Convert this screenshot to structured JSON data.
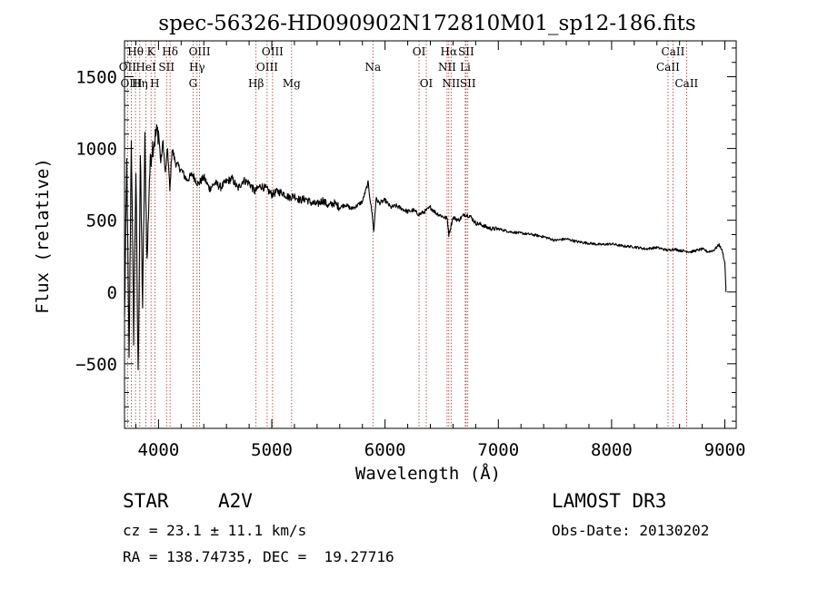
{
  "chart_data": {
    "type": "line",
    "title": "spec-56326-HD090902N172810M01_sp12-186.fits",
    "xlabel": "Wavelength (Å)",
    "ylabel": "Flux (relative)",
    "xlim": [
      3700,
      9100
    ],
    "ylim": [
      -950,
      1750
    ],
    "xticks": [
      4000,
      5000,
      6000,
      7000,
      8000,
      9000
    ],
    "yticks": [
      -500,
      0,
      500,
      1000,
      1500
    ],
    "grid": false,
    "series": [
      {
        "name": "flux",
        "x": [
          3700,
          3720,
          3740,
          3760,
          3780,
          3800,
          3820,
          3840,
          3860,
          3880,
          3900,
          3920,
          3940,
          3960,
          3980,
          4000,
          4020,
          4040,
          4060,
          4080,
          4100,
          4120,
          4150,
          4200,
          4250,
          4300,
          4350,
          4400,
          4450,
          4500,
          4550,
          4600,
          4650,
          4700,
          4750,
          4800,
          4850,
          4900,
          4950,
          5000,
          5050,
          5100,
          5150,
          5200,
          5250,
          5300,
          5350,
          5400,
          5450,
          5500,
          5550,
          5600,
          5650,
          5700,
          5750,
          5800,
          5850,
          5890,
          5900,
          5920,
          5950,
          6000,
          6050,
          6100,
          6150,
          6200,
          6250,
          6300,
          6350,
          6400,
          6450,
          6500,
          6550,
          6563,
          6600,
          6650,
          6700,
          6750,
          6800,
          6850,
          6900,
          6950,
          7000,
          7100,
          7200,
          7300,
          7400,
          7500,
          7600,
          7700,
          7800,
          7900,
          8000,
          8100,
          8200,
          8300,
          8400,
          8500,
          8550,
          8600,
          8650,
          8700,
          8750,
          8800,
          8850,
          8900,
          8950,
          8980,
          9000,
          9010
        ],
        "values": [
          -200,
          900,
          -500,
          1100,
          -300,
          850,
          -600,
          950,
          -100,
          1050,
          200,
          800,
          1000,
          1050,
          1100,
          1120,
          900,
          1050,
          820,
          1000,
          700,
          1000,
          900,
          850,
          780,
          820,
          750,
          800,
          720,
          760,
          730,
          770,
          790,
          720,
          780,
          760,
          700,
          740,
          720,
          680,
          700,
          690,
          660,
          670,
          640,
          650,
          620,
          610,
          640,
          600,
          620,
          590,
          610,
          580,
          600,
          630,
          760,
          520,
          420,
          650,
          620,
          640,
          590,
          600,
          580,
          560,
          570,
          540,
          560,
          590,
          550,
          530,
          510,
          400,
          520,
          500,
          540,
          530,
          480,
          470,
          450,
          440,
          440,
          420,
          410,
          400,
          385,
          360,
          370,
          350,
          340,
          330,
          335,
          320,
          315,
          300,
          310,
          290,
          300,
          290,
          285,
          280,
          290,
          300,
          280,
          290,
          330,
          280,
          200,
          0
        ]
      }
    ],
    "annotations": [
      {
        "label": "Hθ",
        "x": 3797,
        "row": 1
      },
      {
        "label": "K",
        "x": 3934,
        "row": 1
      },
      {
        "label": "Hδ",
        "x": 4102,
        "row": 1
      },
      {
        "label": "OIII",
        "x": 4363,
        "row": 1
      },
      {
        "label": "OIII",
        "x": 5007,
        "row": 1
      },
      {
        "label": "OI",
        "x": 6300,
        "row": 1
      },
      {
        "label": "Hα",
        "x": 6563,
        "row": 1
      },
      {
        "label": "SII",
        "x": 6716,
        "row": 1
      },
      {
        "label": "CaII",
        "x": 8542,
        "row": 1
      },
      {
        "label": "OII",
        "x": 3727,
        "row": 2
      },
      {
        "label": "HeI",
        "x": 3889,
        "row": 2
      },
      {
        "label": "SII",
        "x": 4071,
        "row": 2
      },
      {
        "label": "Hγ",
        "x": 4340,
        "row": 2
      },
      {
        "label": "OIII",
        "x": 4959,
        "row": 2
      },
      {
        "label": "Na",
        "x": 5893,
        "row": 2
      },
      {
        "label": "NII",
        "x": 6548,
        "row": 2
      },
      {
        "label": "Li",
        "x": 6708,
        "row": 2
      },
      {
        "label": "CaII",
        "x": 8498,
        "row": 2
      },
      {
        "label": "OIII",
        "x": 3760,
        "row": 3
      },
      {
        "label": "Hη",
        "x": 3835,
        "row": 3
      },
      {
        "label": "H",
        "x": 3968,
        "row": 3
      },
      {
        "label": "G",
        "x": 4305,
        "row": 3
      },
      {
        "label": "Hβ",
        "x": 4861,
        "row": 3
      },
      {
        "label": "Mg",
        "x": 5175,
        "row": 3
      },
      {
        "label": "OI",
        "x": 6364,
        "row": 3
      },
      {
        "label": "NII",
        "x": 6583,
        "row": 3
      },
      {
        "label": "SII",
        "x": 6731,
        "row": 3
      },
      {
        "label": "CaII",
        "x": 8662,
        "row": 3
      }
    ],
    "line_markers": [
      3727,
      3760,
      3797,
      3835,
      3889,
      3934,
      3968,
      4071,
      4102,
      4305,
      4340,
      4363,
      4861,
      4959,
      5007,
      5175,
      5893,
      6300,
      6364,
      6548,
      6563,
      6583,
      6708,
      6716,
      6731,
      8498,
      8542,
      8662
    ]
  },
  "info": {
    "object_type": "STAR",
    "subclass": "A2V",
    "survey": "LAMOST DR3",
    "cz": "cz = 23.1 ± 11.1 km/s",
    "obs_date": "Obs-Date: 20130202",
    "coords": "RA = 138.74735, DEC =  19.27716"
  },
  "colors": {
    "line": "#000000",
    "marker": "#b03030"
  }
}
